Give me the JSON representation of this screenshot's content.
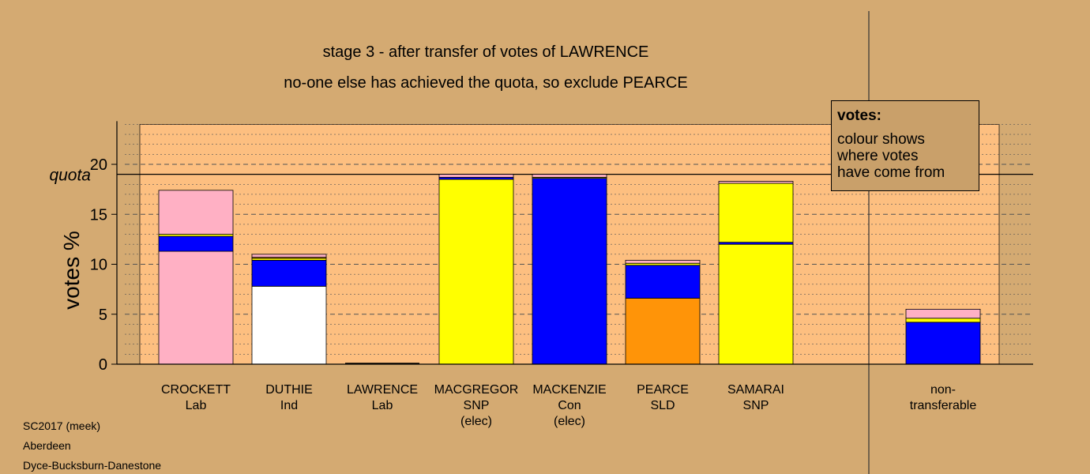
{
  "title_lines": [
    "stage 3 - after transfer of votes of LAWRENCE",
    "no-one else has achieved the quota, so exclude PEARCE"
  ],
  "legend": {
    "title": "votes:",
    "lines": [
      "colour shows",
      "where votes",
      "have come from"
    ]
  },
  "footer": [
    "SC2017 (meek)",
    "Aberdeen",
    "Dyce-Bucksburn-Danestone"
  ],
  "chart_data": {
    "type": "bar",
    "stacked": true,
    "ylabel": "votes %",
    "ylim": [
      0,
      24
    ],
    "yticks": [
      0,
      5,
      10,
      15,
      20
    ],
    "quota": 19.0,
    "quota_label": "quota",
    "colors": {
      "Lab": "#ffb0c4",
      "Ind": "#ffffff",
      "SNP": "#ffff00",
      "Con": "#0000ff",
      "SLD": "#ff9408",
      "background_panel": "#fdbf80"
    },
    "categories": [
      {
        "lines": [
          "CROCKETT",
          "Lab"
        ],
        "segments": [
          {
            "from": "Lab",
            "value": 11.3
          },
          {
            "from": "Con",
            "value": 1.5
          },
          {
            "from": "SNP",
            "value": 0.2
          },
          {
            "from": "Lab",
            "value": 4.4
          }
        ]
      },
      {
        "lines": [
          "DUTHIE",
          "Ind"
        ],
        "segments": [
          {
            "from": "Ind",
            "value": 7.8
          },
          {
            "from": "Con",
            "value": 2.6
          },
          {
            "from": "SNP",
            "value": 0.2
          },
          {
            "from": "SLD",
            "value": 0.1
          },
          {
            "from": "Lab",
            "value": 0.3
          }
        ]
      },
      {
        "lines": [
          "LAWRENCE",
          "Lab"
        ],
        "segments": []
      },
      {
        "lines": [
          "MACGREGOR",
          "SNP",
          "(elec)"
        ],
        "segments": [
          {
            "from": "SNP",
            "value": 18.5
          },
          {
            "from": "Con",
            "value": 0.2
          },
          {
            "from": "Lab",
            "value": 0.3
          }
        ]
      },
      {
        "lines": [
          "MACKENZIE",
          "Con",
          "(elec)"
        ],
        "segments": [
          {
            "from": "Con",
            "value": 18.6
          },
          {
            "from": "SNP",
            "value": 0.1
          },
          {
            "from": "Lab",
            "value": 0.3
          }
        ]
      },
      {
        "lines": [
          "PEARCE",
          "SLD"
        ],
        "segments": [
          {
            "from": "SLD",
            "value": 6.6
          },
          {
            "from": "Con",
            "value": 3.3
          },
          {
            "from": "SNP",
            "value": 0.2
          },
          {
            "from": "Lab",
            "value": 0.3
          }
        ]
      },
      {
        "lines": [
          "SAMARAI",
          "SNP"
        ],
        "segments": [
          {
            "from": "SNP",
            "value": 12.0
          },
          {
            "from": "Con",
            "value": 0.2
          },
          {
            "from": "SNP",
            "value": 5.9
          },
          {
            "from": "Lab",
            "value": 0.2
          }
        ]
      },
      {
        "lines": [
          "non-",
          "transferable"
        ],
        "segments": [
          {
            "from": "Con",
            "value": 4.2
          },
          {
            "from": "SNP",
            "value": 0.4
          },
          {
            "from": "Lab",
            "value": 0.9
          }
        ]
      }
    ]
  }
}
